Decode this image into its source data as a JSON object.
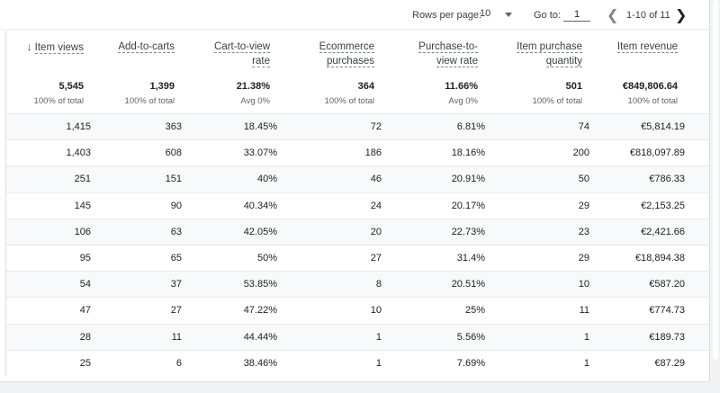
{
  "pagination": {
    "rows_per_page_label": "Rows per page:",
    "rows_per_page_value": "10",
    "goto_label": "Go to:",
    "goto_value": "1",
    "range_label": "1-10 of 11"
  },
  "columns": [
    {
      "key": "item_views",
      "line1": "Item views",
      "line2": "",
      "sorted": true
    },
    {
      "key": "add_to_carts",
      "line1": "Add-to-carts",
      "line2": "",
      "sorted": false
    },
    {
      "key": "cart_to_view_rate",
      "line1": "Cart-to-view",
      "line2": "rate",
      "sorted": false
    },
    {
      "key": "ecommerce_purchases",
      "line1": "Ecommerce",
      "line2": "purchases",
      "sorted": false
    },
    {
      "key": "purchase_to_view_rate",
      "line1": "Purchase-to-",
      "line2": "view rate",
      "sorted": false
    },
    {
      "key": "item_purchase_quantity",
      "line1": "Item purchase",
      "line2": "quantity",
      "sorted": false
    },
    {
      "key": "item_revenue",
      "line1": "Item revenue",
      "line2": "",
      "sorted": false
    }
  ],
  "totals": [
    {
      "value": "5,545",
      "sub": "100% of total"
    },
    {
      "value": "1,399",
      "sub": "100% of total"
    },
    {
      "value": "21.38%",
      "sub": "Avg 0%"
    },
    {
      "value": "364",
      "sub": "100% of total"
    },
    {
      "value": "11.66%",
      "sub": "Avg 0%"
    },
    {
      "value": "501",
      "sub": "100% of total"
    },
    {
      "value": "€849,806.64",
      "sub": "100% of total"
    }
  ],
  "rows": [
    [
      "1,415",
      "363",
      "18.45%",
      "72",
      "6.81%",
      "74",
      "€5,814.19"
    ],
    [
      "1,403",
      "608",
      "33.07%",
      "186",
      "18.16%",
      "200",
      "€818,097.89"
    ],
    [
      "251",
      "151",
      "40%",
      "46",
      "20.91%",
      "50",
      "€786.33"
    ],
    [
      "145",
      "90",
      "40.34%",
      "24",
      "20.17%",
      "29",
      "€2,153.25"
    ],
    [
      "106",
      "63",
      "42.05%",
      "20",
      "22.73%",
      "23",
      "€2,421.66"
    ],
    [
      "95",
      "65",
      "50%",
      "27",
      "31.4%",
      "29",
      "€18,894.38"
    ],
    [
      "54",
      "37",
      "53.85%",
      "8",
      "20.51%",
      "10",
      "€587.20"
    ],
    [
      "47",
      "27",
      "47.22%",
      "10",
      "25%",
      "11",
      "€774.73"
    ],
    [
      "28",
      "11",
      "44.44%",
      "1",
      "5.56%",
      "1",
      "€189.73"
    ],
    [
      "25",
      "6",
      "38.46%",
      "1",
      "7.69%",
      "1",
      "€87.29"
    ]
  ]
}
